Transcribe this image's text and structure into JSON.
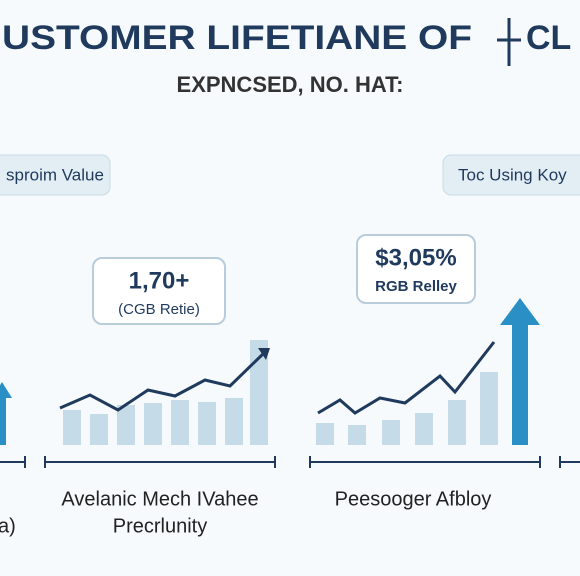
{
  "header": {
    "title": "USTOMER LIFETIANE OF",
    "title_end": "CL",
    "subtitle": "EXPNCSED, NO. HAT:"
  },
  "pills": [
    "sproim Value",
    "Toc Using Koy"
  ],
  "callouts": [
    {
      "value": "1,70+",
      "caption": "(CGB Retie)"
    },
    {
      "value": "$3,05%",
      "caption": "RGB Relley"
    }
  ],
  "labels": [
    {
      "lines": [
        "Avelanic Mech IVahee",
        "Precrlunity"
      ]
    },
    {
      "lines": [
        "Peesooger Afbloy"
      ]
    },
    {
      "lines": [
        "a)"
      ]
    }
  ]
}
